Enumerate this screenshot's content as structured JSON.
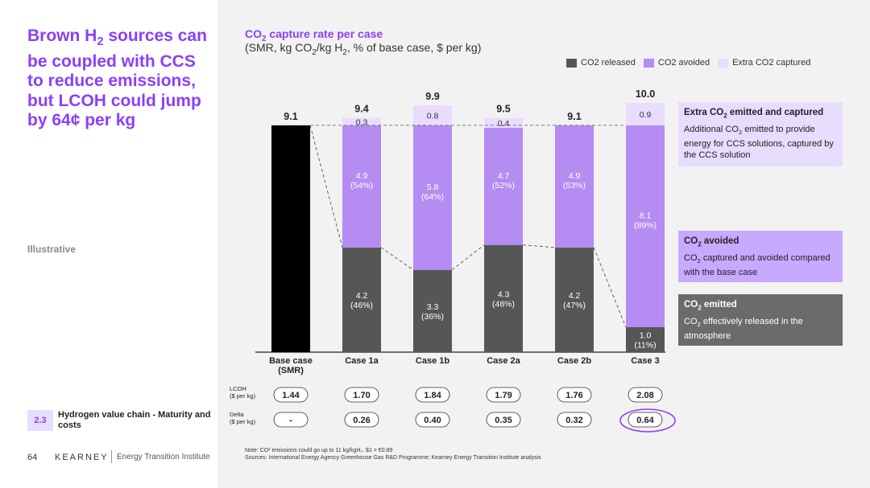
{
  "headline": {
    "pre": "Brown H",
    "sub": "2",
    "post": " sources can be coupled with CCS to reduce emissions, but LCOH could jump by 64¢ per kg"
  },
  "illustrative": "Illustrative",
  "section": {
    "number": "2.3",
    "label": "Hydrogen value chain - Maturity and costs"
  },
  "footer": {
    "page": "64",
    "brand": "KEARNEY",
    "institute": "Energy Transition Institute"
  },
  "notes": {
    "line1": "Note: CO² emissions could go up to 11 kg/kgH₂. $1 = €0.89",
    "line2": "Sources: International Energy Agency Greenhouse Gas R&D Programme; Kearney Energy Transition Institute analysis"
  },
  "chart_title": {
    "pre": "CO",
    "sub": "2",
    "post": " capture rate per case"
  },
  "chart_subtitle": {
    "p1": "(SMR, kg CO",
    "s1": "2",
    "p2": "/kg H",
    "s2": "2",
    "p3": ", % of base case, $ per kg)"
  },
  "callouts": {
    "extra": {
      "t_pre": "Extra CO",
      "t_sub": "2",
      "t_post": " emitted and captured",
      "b_pre": "Additional CO",
      "b_sub": "2",
      "b_post": " emitted to provide energy for CCS solutions, captured by the CCS solution"
    },
    "avoided": {
      "t_pre": "CO",
      "t_sub": "2",
      "t_post": " avoided",
      "b_pre": "CO",
      "b_sub": "2",
      "b_post": " captured and avoided compared with the base case"
    },
    "emitted": {
      "t_pre": "CO",
      "t_sub": "2",
      "t_post": " emitted",
      "b_pre": "CO",
      "b_sub": "2",
      "b_post": " effectively released in the atmosphere"
    }
  },
  "colors": {
    "released": "#565656",
    "avoided": "#b48cf2",
    "extra": "#e8dcff",
    "base": "#000000",
    "accent": "#8a3ffc"
  },
  "chart_data": {
    "type": "bar",
    "stacked": true,
    "categories": [
      "Base case\n(SMR)",
      "Case 1a",
      "Case 1b",
      "Case 2a",
      "Case 2b",
      "Case 3"
    ],
    "base_value": 9.1,
    "totals": [
      "9.1",
      "9.4",
      "9.9",
      "9.5",
      "9.1",
      "10.0"
    ],
    "series": [
      {
        "name": "CO2 released",
        "values": [
          9.1,
          4.2,
          3.3,
          4.3,
          4.2,
          1.0
        ],
        "labels": [
          "",
          "4.2\n(46%)",
          "3.3\n(36%)",
          "4.3\n(48%)",
          "4.2\n(47%)",
          "1.0\n(11%)"
        ]
      },
      {
        "name": "CO2 avoided",
        "values": [
          0,
          4.9,
          5.8,
          4.7,
          4.9,
          8.1
        ],
        "labels": [
          "",
          "4.9\n(54%)",
          "5.8\n(64%)",
          "4.7\n(52%)",
          "4.9\n(53%)",
          "8.1\n(89%)"
        ]
      },
      {
        "name": "Extra CO2 captured",
        "values": [
          0,
          0.3,
          0.8,
          0.4,
          0,
          0.9
        ],
        "labels": [
          "",
          "0.3",
          "0.8",
          "0.4",
          "",
          "0.9"
        ]
      }
    ],
    "lcoh": {
      "label": "LCOH\n($ per kg)",
      "values": [
        "1.44",
        "1.70",
        "1.84",
        "1.79",
        "1.76",
        "2.08"
      ]
    },
    "delta": {
      "label": "Delta\n($ per kg)",
      "values": [
        "-",
        "0.26",
        "0.40",
        "0.35",
        "0.32",
        "0.64"
      ]
    },
    "highlight_delta_index": 5,
    "ylim": [
      0,
      10.0
    ]
  }
}
